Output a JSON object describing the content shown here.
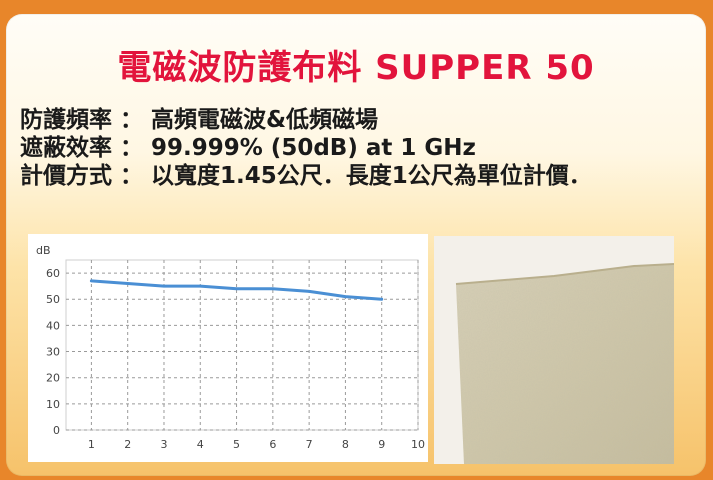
{
  "title": "電磁波防護布料 SUPPER 50",
  "specs": [
    {
      "label": "防護頻率",
      "value": "高頻電磁波&低頻磁場"
    },
    {
      "label": "遮蔽效率",
      "value": "99.999% (50dB) at 1 GHz"
    },
    {
      "label": "計價方式",
      "value": "以寬度1.45公尺．長度1公尺為單位計價．"
    }
  ],
  "chart_data": {
    "type": "line",
    "ylabel": "dB",
    "x": [
      1,
      2,
      3,
      4,
      5,
      6,
      7,
      8,
      9
    ],
    "series": [
      {
        "values": [
          57,
          56,
          55,
          55,
          54,
          54,
          53,
          51,
          50
        ]
      }
    ],
    "xticks": [
      1,
      2,
      3,
      4,
      5,
      6,
      7,
      8,
      9,
      10
    ],
    "yticks": [
      0,
      10,
      20,
      30,
      40,
      50,
      60
    ],
    "xlim": [
      0.3,
      10
    ],
    "ylim": [
      0,
      65
    ],
    "grid": true,
    "line_color": "#4a8fd4"
  },
  "photo": {
    "subject": "fabric-swatch"
  }
}
